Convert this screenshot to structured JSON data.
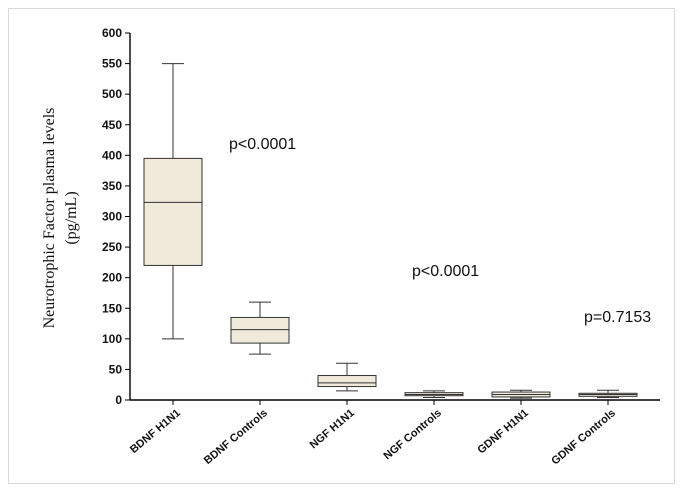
{
  "chart_data": {
    "type": "box",
    "ylabel_line1": "Neurotrophic Factor plasma levels",
    "ylabel_line2": "(pg/mL)",
    "ylim": [
      0,
      600
    ],
    "yticks": [
      0,
      50,
      100,
      150,
      200,
      250,
      300,
      350,
      400,
      450,
      500,
      550,
      600
    ],
    "categories": [
      "BDNF H1N1",
      "BDNF Controls",
      "NGF H1N1",
      "NGF Controls",
      "GDNF H1N1",
      "GDNF Controls"
    ],
    "boxes": [
      {
        "min": 100,
        "q1": 220,
        "median": 323,
        "q3": 395,
        "max": 550
      },
      {
        "min": 75,
        "q1": 93,
        "median": 115,
        "q3": 135,
        "max": 160
      },
      {
        "min": 15,
        "q1": 22,
        "median": 28,
        "q3": 40,
        "max": 60
      },
      {
        "min": 4,
        "q1": 7,
        "median": 9,
        "q3": 12,
        "max": 15
      },
      {
        "min": 3,
        "q1": 5,
        "median": 9,
        "q3": 13,
        "max": 16
      },
      {
        "min": 4,
        "q1": 6,
        "median": 9,
        "q3": 11,
        "max": 16
      }
    ],
    "annotations": [
      {
        "text": "p<0.0001",
        "between": "BDNF"
      },
      {
        "text": "p<0.0001",
        "between": "NGF"
      },
      {
        "text": "p=0.7153",
        "between": "GDNF"
      }
    ],
    "box_fill": "#f0eadb",
    "box_stroke": "#333333"
  }
}
